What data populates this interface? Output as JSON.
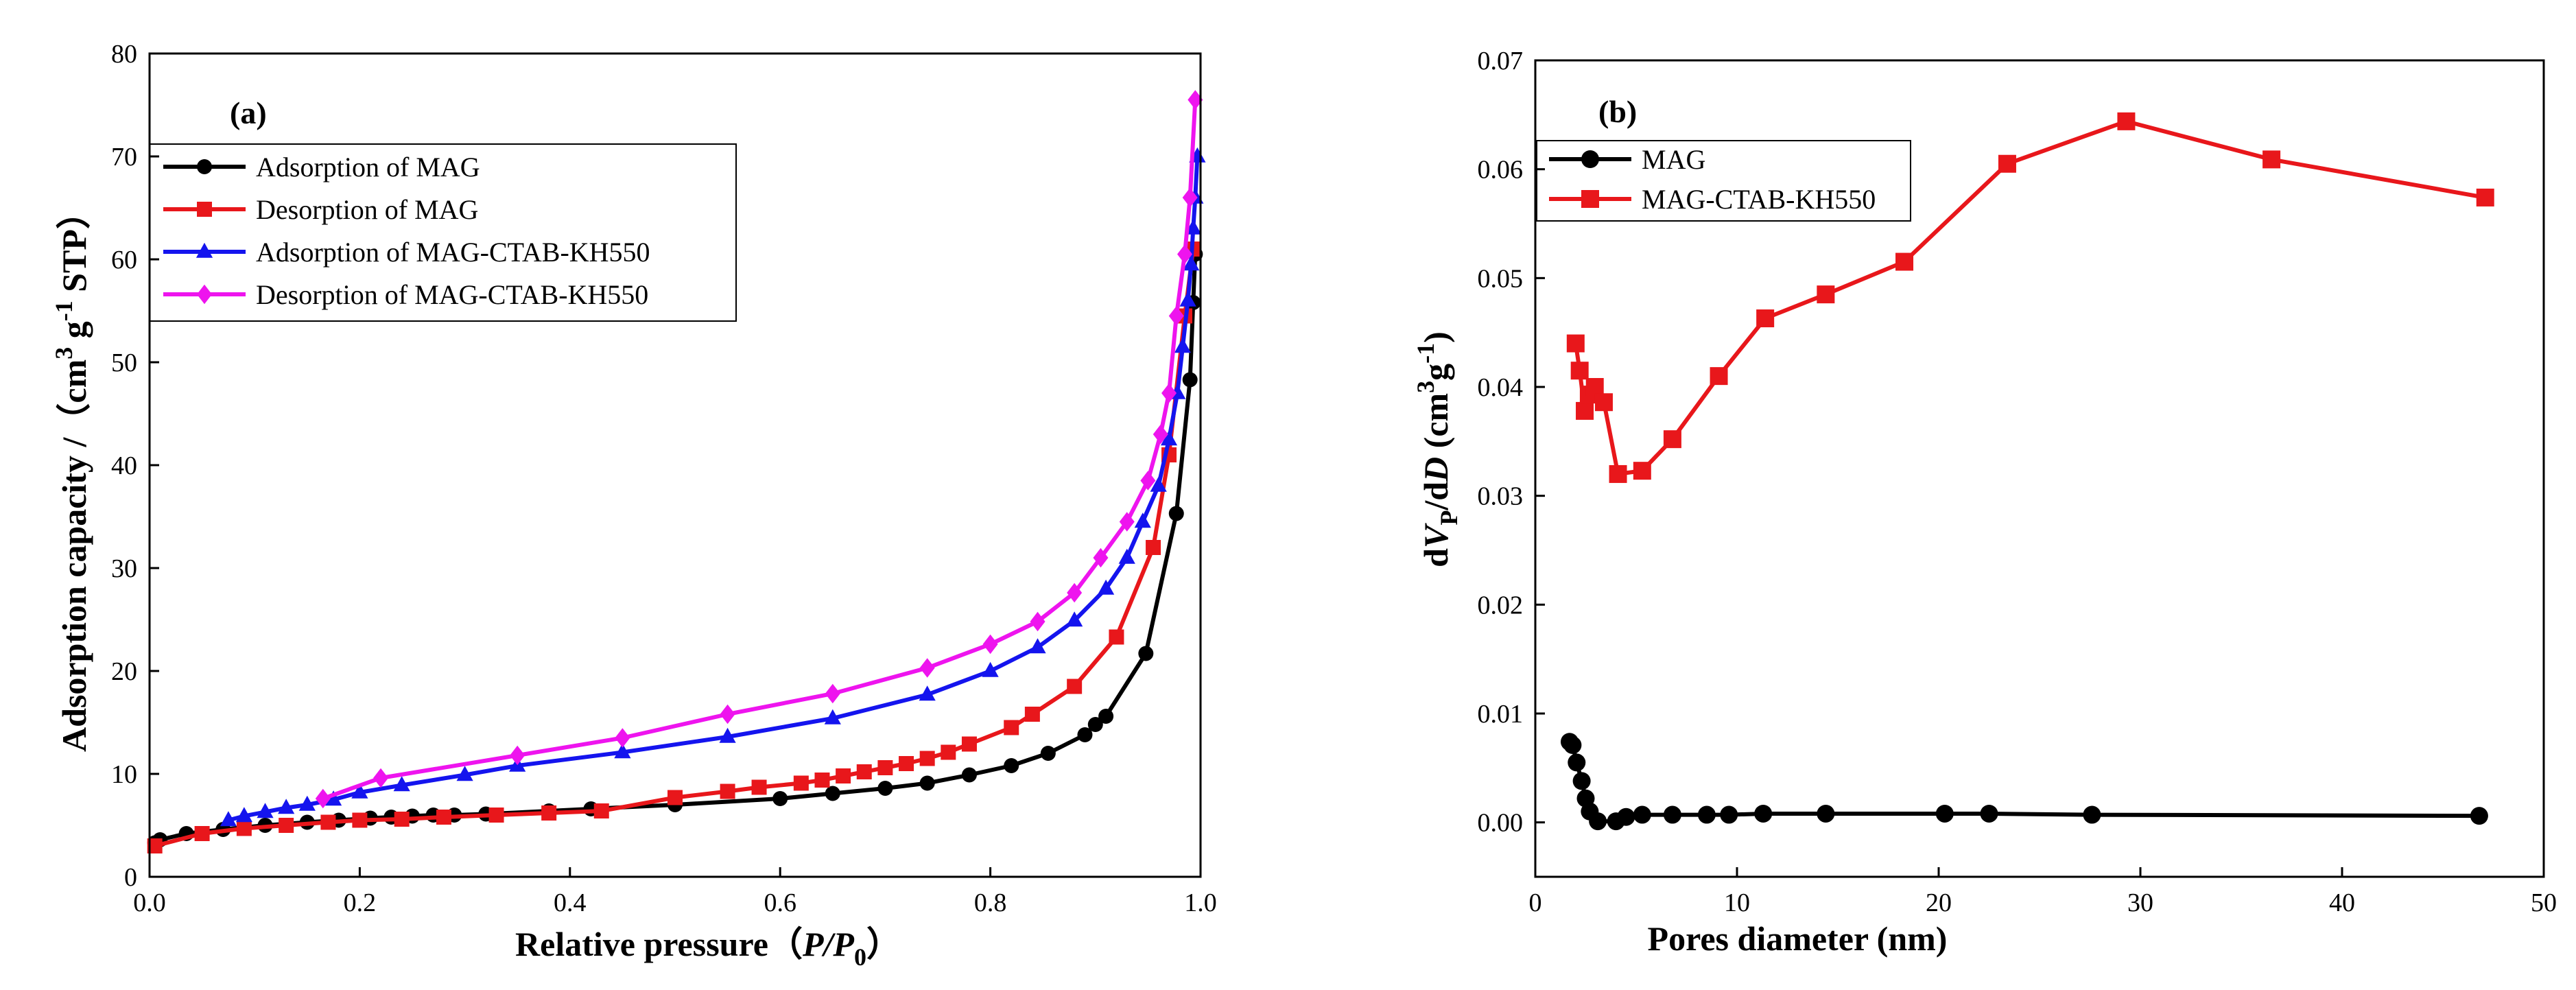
{
  "figure": {
    "chart_data": [
      {
        "type": "line",
        "panel_label": "(a)",
        "xlabel": "Relative pressure",
        "xlabel_open": "（",
        "xlabel_p": "P",
        "xlabel_slash": "/",
        "xlabel_p0": "P",
        "xlabel_sub": "0",
        "xlabel_close": "）",
        "ylabel": "Adsorption capacity /（cm",
        "ylabel_sup1": "3",
        "ylabel_g": " g",
        "ylabel_sup2": "-1",
        "ylabel_tail": " STP）",
        "xlim": [
          0,
          1.0
        ],
        "ylim": [
          0,
          80
        ],
        "xticks": [
          "0.0",
          "0.2",
          "0.4",
          "0.6",
          "0.8",
          "1.0"
        ],
        "xtick_values": [
          0,
          0.2,
          0.4,
          0.6,
          0.8,
          1.0
        ],
        "yticks": [
          "0",
          "10",
          "20",
          "30",
          "40",
          "50",
          "60",
          "70",
          "80"
        ],
        "ytick_values": [
          0,
          10,
          20,
          30,
          40,
          50,
          60,
          70,
          80
        ],
        "legend_position": "top-left",
        "series": [
          {
            "name": "Adsorption of MAG",
            "color": "#000000",
            "marker": "circle",
            "points": [
              [
                0.005,
                3.3
              ],
              [
                0.01,
                3.6
              ],
              [
                0.035,
                4.2
              ],
              [
                0.07,
                4.6
              ],
              [
                0.11,
                5.0
              ],
              [
                0.15,
                5.3
              ],
              [
                0.18,
                5.5
              ],
              [
                0.21,
                5.7
              ],
              [
                0.23,
                5.8
              ],
              [
                0.25,
                5.9
              ],
              [
                0.27,
                6.0
              ],
              [
                0.29,
                6.0
              ],
              [
                0.32,
                6.1
              ],
              [
                0.38,
                6.4
              ],
              [
                0.42,
                6.6
              ],
              [
                0.5,
                7.0
              ],
              [
                0.6,
                7.6
              ],
              [
                0.65,
                8.1
              ],
              [
                0.7,
                8.6
              ],
              [
                0.74,
                9.1
              ],
              [
                0.78,
                9.9
              ],
              [
                0.82,
                10.8
              ],
              [
                0.855,
                12.0
              ],
              [
                0.89,
                13.8
              ],
              [
                0.9,
                14.8
              ],
              [
                0.91,
                15.6
              ],
              [
                0.948,
                21.7
              ],
              [
                0.977,
                35.3
              ],
              [
                0.99,
                48.3
              ],
              [
                0.993,
                55.8
              ],
              [
                0.995,
                60.5
              ]
            ]
          },
          {
            "name": "Desorption of MAG",
            "color": "#e8171b",
            "marker": "square",
            "points": [
              [
                0.005,
                3.0
              ],
              [
                0.05,
                4.2
              ],
              [
                0.09,
                4.7
              ],
              [
                0.13,
                5.0
              ],
              [
                0.17,
                5.3
              ],
              [
                0.2,
                5.5
              ],
              [
                0.24,
                5.6
              ],
              [
                0.28,
                5.8
              ],
              [
                0.33,
                6.0
              ],
              [
                0.38,
                6.2
              ],
              [
                0.43,
                6.4
              ],
              [
                0.5,
                7.7
              ],
              [
                0.55,
                8.3
              ],
              [
                0.58,
                8.7
              ],
              [
                0.62,
                9.1
              ],
              [
                0.64,
                9.4
              ],
              [
                0.66,
                9.8
              ],
              [
                0.68,
                10.2
              ],
              [
                0.7,
                10.6
              ],
              [
                0.72,
                11.0
              ],
              [
                0.74,
                11.5
              ],
              [
                0.76,
                12.1
              ],
              [
                0.78,
                12.9
              ],
              [
                0.82,
                14.5
              ],
              [
                0.84,
                15.8
              ],
              [
                0.88,
                18.5
              ],
              [
                0.92,
                23.3
              ],
              [
                0.955,
                32.0
              ],
              [
                0.97,
                41.0
              ],
              [
                0.985,
                54.5
              ],
              [
                0.993,
                61.0
              ]
            ]
          },
          {
            "name": "Adsorption of MAG-CTAB-KH550",
            "color": "#1414ee",
            "marker": "triangle",
            "points": [
              [
                0.075,
                5.5
              ],
              [
                0.09,
                5.9
              ],
              [
                0.11,
                6.3
              ],
              [
                0.13,
                6.7
              ],
              [
                0.15,
                7.0
              ],
              [
                0.175,
                7.5
              ],
              [
                0.2,
                8.2
              ],
              [
                0.24,
                8.9
              ],
              [
                0.3,
                9.9
              ],
              [
                0.35,
                10.8
              ],
              [
                0.45,
                12.1
              ],
              [
                0.55,
                13.6
              ],
              [
                0.65,
                15.4
              ],
              [
                0.74,
                17.7
              ],
              [
                0.8,
                20.0
              ],
              [
                0.845,
                22.3
              ],
              [
                0.88,
                24.9
              ],
              [
                0.91,
                28.0
              ],
              [
                0.93,
                31.0
              ],
              [
                0.945,
                34.5
              ],
              [
                0.96,
                38.0
              ],
              [
                0.97,
                42.5
              ],
              [
                0.978,
                47.0
              ],
              [
                0.983,
                51.5
              ],
              [
                0.988,
                56.0
              ],
              [
                0.991,
                59.5
              ],
              [
                0.993,
                63.0
              ],
              [
                0.995,
                66.0
              ],
              [
                0.997,
                70.0
              ]
            ]
          },
          {
            "name": "Desorption of MAG-CTAB-KH550",
            "color": "#ee14ee",
            "marker": "diamond",
            "points": [
              [
                0.165,
                7.6
              ],
              [
                0.22,
                9.6
              ],
              [
                0.35,
                11.8
              ],
              [
                0.45,
                13.5
              ],
              [
                0.55,
                15.8
              ],
              [
                0.65,
                17.8
              ],
              [
                0.74,
                20.3
              ],
              [
                0.8,
                22.6
              ],
              [
                0.845,
                24.8
              ],
              [
                0.88,
                27.6
              ],
              [
                0.905,
                31.0
              ],
              [
                0.93,
                34.5
              ],
              [
                0.95,
                38.5
              ],
              [
                0.962,
                43.0
              ],
              [
                0.97,
                47.0
              ],
              [
                0.977,
                54.5
              ],
              [
                0.985,
                60.5
              ],
              [
                0.99,
                66.0
              ],
              [
                0.995,
                75.5
              ]
            ]
          }
        ]
      },
      {
        "type": "line",
        "panel_label": "(b)",
        "xlabel": "Pores diameter (nm)",
        "ylabel_d1": "d",
        "ylabel_v": "V",
        "ylabel_vsub": "P",
        "ylabel_mid": "/d",
        "ylabel_d": "D",
        "ylabel_unit": " (cm",
        "ylabel_sup1": "3",
        "ylabel_g": "g",
        "ylabel_sup2": "-1",
        "ylabel_close": ")",
        "xlim": [
          0,
          50
        ],
        "ylim": [
          -0.005,
          0.07
        ],
        "xticks": [
          "0",
          "10",
          "20",
          "30",
          "40",
          "50"
        ],
        "xtick_values": [
          0,
          10,
          20,
          30,
          40,
          50
        ],
        "yticks": [
          "0.00",
          "0.01",
          "0.02",
          "0.03",
          "0.04",
          "0.05",
          "0.06",
          "0.07"
        ],
        "ytick_values": [
          0,
          0.01,
          0.02,
          0.03,
          0.04,
          0.05,
          0.06,
          0.07
        ],
        "legend_position": "top-left",
        "series": [
          {
            "name": "MAG",
            "color": "#000000",
            "marker": "circle",
            "points": [
              [
                1.7,
                0.0074
              ],
              [
                1.85,
                0.0071
              ],
              [
                2.05,
                0.0055
              ],
              [
                2.3,
                0.0038
              ],
              [
                2.5,
                0.0022
              ],
              [
                2.7,
                0.001
              ],
              [
                3.1,
                0.0001
              ],
              [
                4.0,
                0.0001
              ],
              [
                4.5,
                0.0005
              ],
              [
                5.3,
                0.0007
              ],
              [
                6.8,
                0.0007
              ],
              [
                8.5,
                0.0007
              ],
              [
                9.6,
                0.0007
              ],
              [
                11.3,
                0.0008
              ],
              [
                14.4,
                0.0008
              ],
              [
                20.3,
                0.0008
              ],
              [
                22.5,
                0.0008
              ],
              [
                27.6,
                0.0007
              ],
              [
                46.8,
                0.0006
              ]
            ]
          },
          {
            "name": "MAG-CTAB-KH550",
            "color": "#e8171b",
            "marker": "square",
            "points": [
              [
                2.0,
                0.044
              ],
              [
                2.2,
                0.0415
              ],
              [
                2.45,
                0.0378
              ],
              [
                2.65,
                0.0393
              ],
              [
                2.95,
                0.04
              ],
              [
                3.4,
                0.0386
              ],
              [
                4.1,
                0.032
              ],
              [
                5.3,
                0.0323
              ],
              [
                6.8,
                0.0352
              ],
              [
                9.1,
                0.041
              ],
              [
                11.4,
                0.0463
              ],
              [
                14.4,
                0.0485
              ],
              [
                18.3,
                0.0515
              ],
              [
                23.4,
                0.0605
              ],
              [
                29.3,
                0.0644
              ],
              [
                36.5,
                0.0609
              ],
              [
                47.1,
                0.0574
              ]
            ]
          }
        ]
      }
    ]
  }
}
